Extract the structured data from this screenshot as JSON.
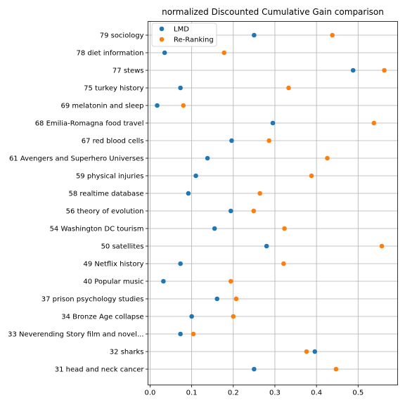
{
  "chart_data": {
    "type": "scatter",
    "title": "normalized Discounted Cumulative Gain comparison",
    "xlabel": "",
    "ylabel": "",
    "xlim": [
      -0.005,
      0.595
    ],
    "xticks": [
      0.0,
      0.1,
      0.2,
      0.3,
      0.4,
      0.5
    ],
    "xtick_labels": [
      "0.0",
      "0.1",
      "0.2",
      "0.3",
      "0.4",
      "0.5"
    ],
    "grid": true,
    "legend_position": "top-left",
    "categories": [
      "79 sociology",
      "78 diet information",
      "77 stews",
      "75 turkey history",
      "69 melatonin and sleep",
      "68 Emilia-Romagna food travel",
      "67 red blood cells",
      "61 Avengers and Superhero Universes",
      "59 physical injuries",
      "58 realtime database",
      "56 theory of evolution",
      "54 Washington DC tourism",
      "50 satellites",
      "49 Netflix history",
      "40 Popular music",
      "37 prison psychology studies",
      "34 Bronze Age collapse",
      "33 Neverending Story film and novel...",
      "32 sharks",
      "31 head and neck cancer"
    ],
    "series": [
      {
        "name": "LMD",
        "color": "#1f77b4",
        "values": [
          0.25,
          0.035,
          0.488,
          0.073,
          0.017,
          0.295,
          0.196,
          0.138,
          0.11,
          0.092,
          0.194,
          0.155,
          0.28,
          0.073,
          0.032,
          0.161,
          0.1,
          0.073,
          0.396,
          0.25
        ]
      },
      {
        "name": "Re-Ranking",
        "color": "#ff7f0e",
        "values": [
          0.438,
          0.178,
          0.563,
          0.333,
          0.08,
          0.538,
          0.286,
          0.426,
          0.388,
          0.264,
          0.249,
          0.323,
          0.557,
          0.321,
          0.194,
          0.207,
          0.2,
          0.104,
          0.376,
          0.447
        ]
      }
    ]
  }
}
